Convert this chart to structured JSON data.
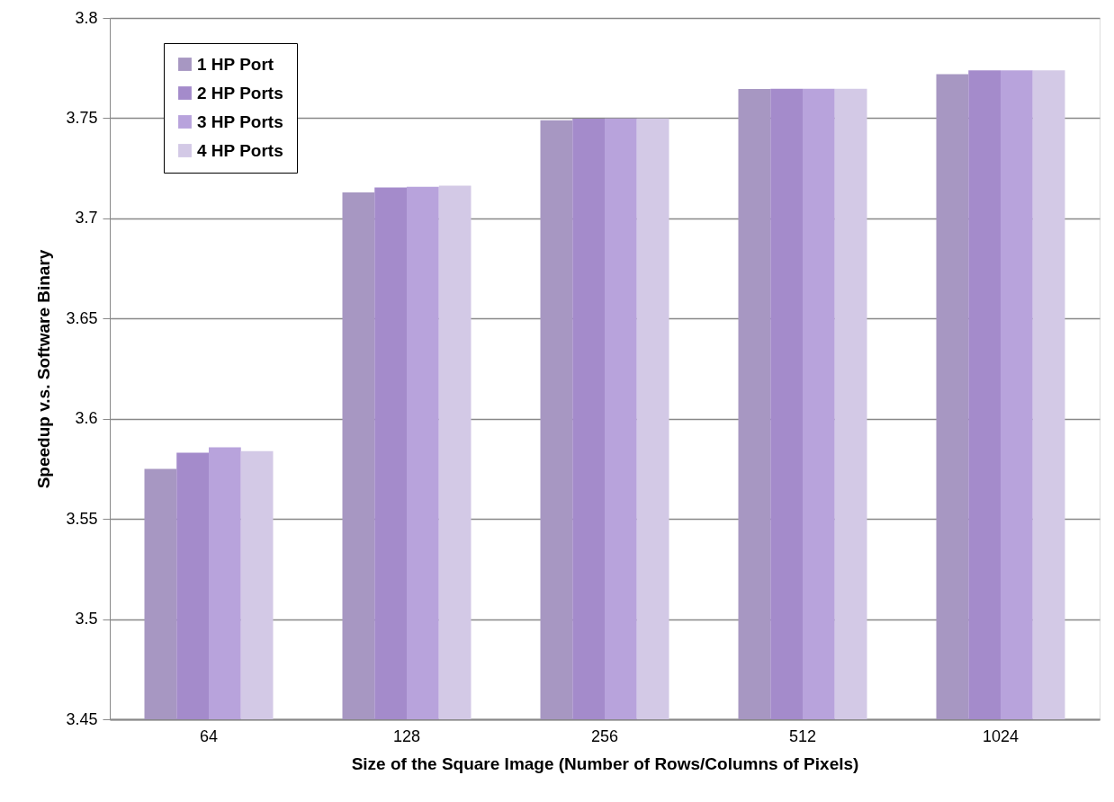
{
  "chart_data": {
    "type": "bar",
    "xlabel": "Size of the Square Image (Number of Rows/Columns of Pixels)",
    "ylabel": "Speedup v.s. Software Binary",
    "categories": [
      "64",
      "128",
      "256",
      "512",
      "1024"
    ],
    "series": [
      {
        "name": "1 HP Port",
        "color": "#a797c2",
        "values": [
          3.575,
          3.713,
          3.749,
          3.7645,
          3.772
        ]
      },
      {
        "name": "2 HP Ports",
        "color": "#a48bcb",
        "values": [
          3.583,
          3.7154,
          3.7497,
          3.7647,
          3.7739
        ]
      },
      {
        "name": "3 HP Ports",
        "color": "#b8a3dc",
        "values": [
          3.5857,
          3.7158,
          3.7499,
          3.7647,
          3.7739
        ]
      },
      {
        "name": "4 HP Ports",
        "color": "#d3c9e6",
        "values": [
          3.5838,
          3.7163,
          3.7499,
          3.7647,
          3.7739
        ]
      }
    ],
    "ylim": [
      3.45,
      3.8
    ],
    "yticks": [
      3.45,
      3.5,
      3.55,
      3.6,
      3.65,
      3.7,
      3.75,
      3.8
    ],
    "grid": "y",
    "legend": "top left"
  }
}
